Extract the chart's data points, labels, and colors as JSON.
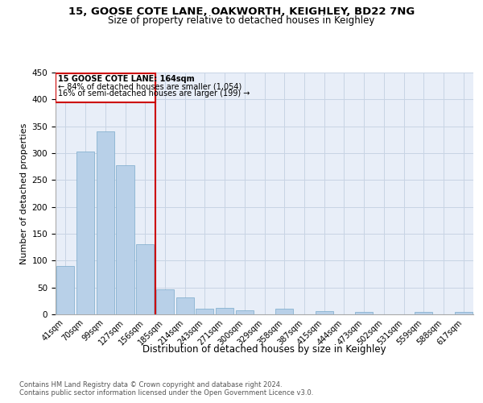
{
  "title1": "15, GOOSE COTE LANE, OAKWORTH, KEIGHLEY, BD22 7NG",
  "title2": "Size of property relative to detached houses in Keighley",
  "xlabel": "Distribution of detached houses by size in Keighley",
  "ylabel": "Number of detached properties",
  "footer_line1": "Contains HM Land Registry data © Crown copyright and database right 2024.",
  "footer_line2": "Contains public sector information licensed under the Open Government Licence v3.0.",
  "categories": [
    "41sqm",
    "70sqm",
    "99sqm",
    "127sqm",
    "156sqm",
    "185sqm",
    "214sqm",
    "243sqm",
    "271sqm",
    "300sqm",
    "329sqm",
    "358sqm",
    "387sqm",
    "415sqm",
    "444sqm",
    "473sqm",
    "502sqm",
    "531sqm",
    "559sqm",
    "588sqm",
    "617sqm"
  ],
  "values": [
    90,
    303,
    340,
    278,
    130,
    47,
    31,
    10,
    12,
    7,
    0,
    10,
    0,
    6,
    0,
    4,
    0,
    0,
    5,
    0,
    4
  ],
  "bar_color": "#b8d0e8",
  "bar_edge_color": "#7aaaca",
  "annotation_text_line1": "15 GOOSE COTE LANE: 164sqm",
  "annotation_text_line2": "← 84% of detached houses are smaller (1,054)",
  "annotation_text_line3": "16% of semi-detached houses are larger (199) →",
  "vline_color": "#cc0000",
  "annotation_box_color": "#cc0000",
  "background_color": "#e8eef8",
  "grid_color": "#c8d4e4",
  "ylim": [
    0,
    450
  ],
  "yticks": [
    0,
    50,
    100,
    150,
    200,
    250,
    300,
    350,
    400,
    450
  ]
}
